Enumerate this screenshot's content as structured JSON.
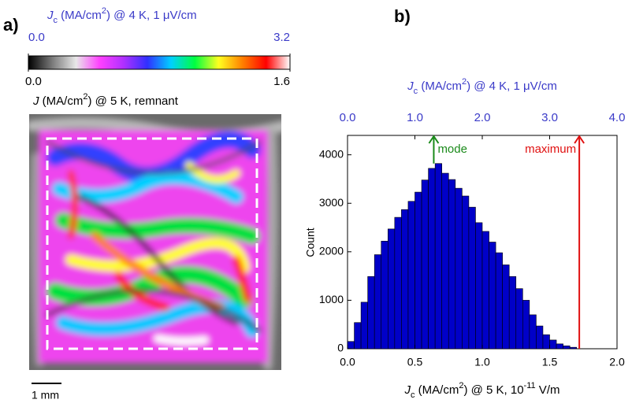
{
  "chart_data": [
    {
      "type": "map",
      "panel_label": "a)",
      "colorbar": {
        "label": [
          {
            "text": "J",
            "style": "i"
          },
          {
            "text": "c",
            "style": "sub"
          },
          {
            "text": " (MA/cm"
          },
          {
            "text": "2",
            "style": "sup"
          },
          {
            "text": ") @ 4 K, 1 μV/cm"
          }
        ],
        "label_color": "#3a3ac8",
        "clim": [
          0,
          3.2
        ],
        "ticks": [
          {
            "value": 0,
            "label": "0.0"
          },
          {
            "value": 3.2,
            "label": "3.2"
          }
        ],
        "clim2": [
          0,
          1.6
        ],
        "ticks2": [
          {
            "value": 0,
            "label": "0.0"
          },
          {
            "value": 1.6,
            "label": "1.6"
          }
        ],
        "label2": [
          {
            "text": "J",
            "style": "i"
          },
          {
            "text": " (MA/cm"
          },
          {
            "text": "2",
            "style": "sup"
          },
          {
            "text": ") @ 5 K, remnant"
          }
        ],
        "colormap": [
          "#000000",
          "#7a7a7a",
          "#e8e8e8",
          "#ff40ff",
          "#b030ff",
          "#3030ff",
          "#00d0ff",
          "#00ff40",
          "#ffff20",
          "#ff8000",
          "#ff0000",
          "#ffffff"
        ]
      },
      "scale_bar": "1 mm"
    },
    {
      "type": "histogram",
      "panel_label": "b)",
      "xlabel": [
        {
          "text": "J",
          "style": "i"
        },
        {
          "text": "c",
          "style": "sub"
        },
        {
          "text": " (MA/cm"
        },
        {
          "text": "2",
          "style": "sup"
        },
        {
          "text": ") @ 5 K, 10"
        },
        {
          "text": "-11",
          "style": "sup"
        },
        {
          "text": " V/m"
        }
      ],
      "x2label": [
        {
          "text": "J",
          "style": "i"
        },
        {
          "text": "c",
          "style": "sub"
        },
        {
          "text": " (MA/cm"
        },
        {
          "text": "2",
          "style": "sup"
        },
        {
          "text": ") @ 4 K, 1 μV/cm"
        }
      ],
      "x2_color": "#3a3ac8",
      "ylabel": "Count",
      "color": "#0000c8",
      "bins": [
        0.0,
        0.05,
        0.1,
        0.15,
        0.2,
        0.25,
        0.3,
        0.35,
        0.4,
        0.45,
        0.5,
        0.55,
        0.6,
        0.65,
        0.7,
        0.75,
        0.8,
        0.85,
        0.9,
        0.95,
        1.0,
        1.05,
        1.1,
        1.15,
        1.2,
        1.25,
        1.3,
        1.35,
        1.4,
        1.45,
        1.5,
        1.55,
        1.6,
        1.65,
        1.7
      ],
      "counts": [
        150,
        540,
        960,
        1490,
        1940,
        2220,
        2470,
        2710,
        2870,
        3040,
        3230,
        3480,
        3720,
        3820,
        3620,
        3490,
        3310,
        3150,
        2920,
        2600,
        2420,
        2200,
        1980,
        1730,
        1490,
        1240,
        1000,
        700,
        470,
        290,
        180,
        100,
        60,
        30
      ],
      "xlim": [
        0,
        2
      ],
      "xticks": [
        {
          "value": 0,
          "label": "0.0"
        },
        {
          "value": 0.5,
          "label": "0.5"
        },
        {
          "value": 1,
          "label": "1.0"
        },
        {
          "value": 1.5,
          "label": "1.5"
        },
        {
          "value": 2,
          "label": "2.0"
        }
      ],
      "x2lim": [
        0,
        4
      ],
      "x2ticks": [
        {
          "value": 0,
          "label": "0.0"
        },
        {
          "value": 1,
          "label": "1.0"
        },
        {
          "value": 2,
          "label": "2.0"
        },
        {
          "value": 3,
          "label": "3.0"
        },
        {
          "value": 4,
          "label": "4.0"
        }
      ],
      "ylim": [
        0,
        4400
      ],
      "yticks": [
        0,
        1000,
        2000,
        3000,
        4000
      ],
      "annotations": [
        {
          "text": "mode",
          "x": 0.64,
          "color": "#1a8a1a"
        },
        {
          "text": "maximum",
          "x": 1.72,
          "color": "#e01010"
        }
      ]
    }
  ]
}
